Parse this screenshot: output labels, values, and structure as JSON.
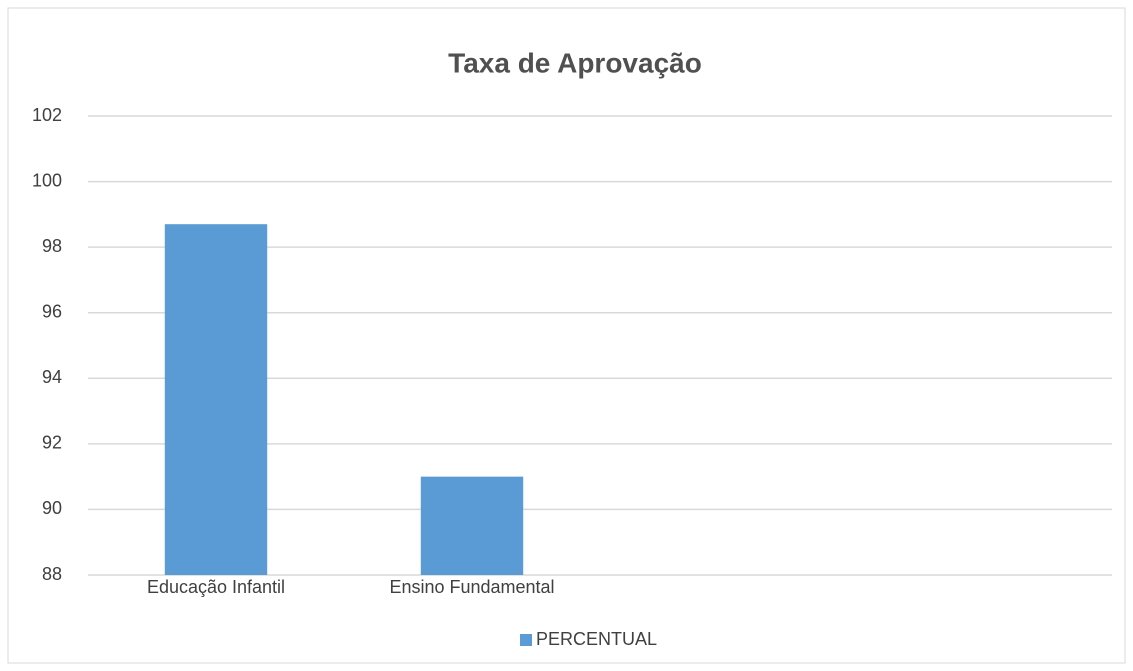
{
  "chart_data": {
    "type": "bar",
    "title": "Taxa de Aprovação",
    "categories": [
      "Educação Infantil",
      "Ensino Fundamental",
      null,
      null
    ],
    "series": [
      {
        "name": "PERCENTUAL",
        "color": "#5b9bd5",
        "values": [
          98.7,
          91,
          null,
          null
        ]
      }
    ],
    "ylim": [
      88,
      102
    ],
    "yticks": [
      88,
      90,
      92,
      94,
      96,
      98,
      100,
      102
    ],
    "grid": true,
    "legend": "bottom"
  }
}
